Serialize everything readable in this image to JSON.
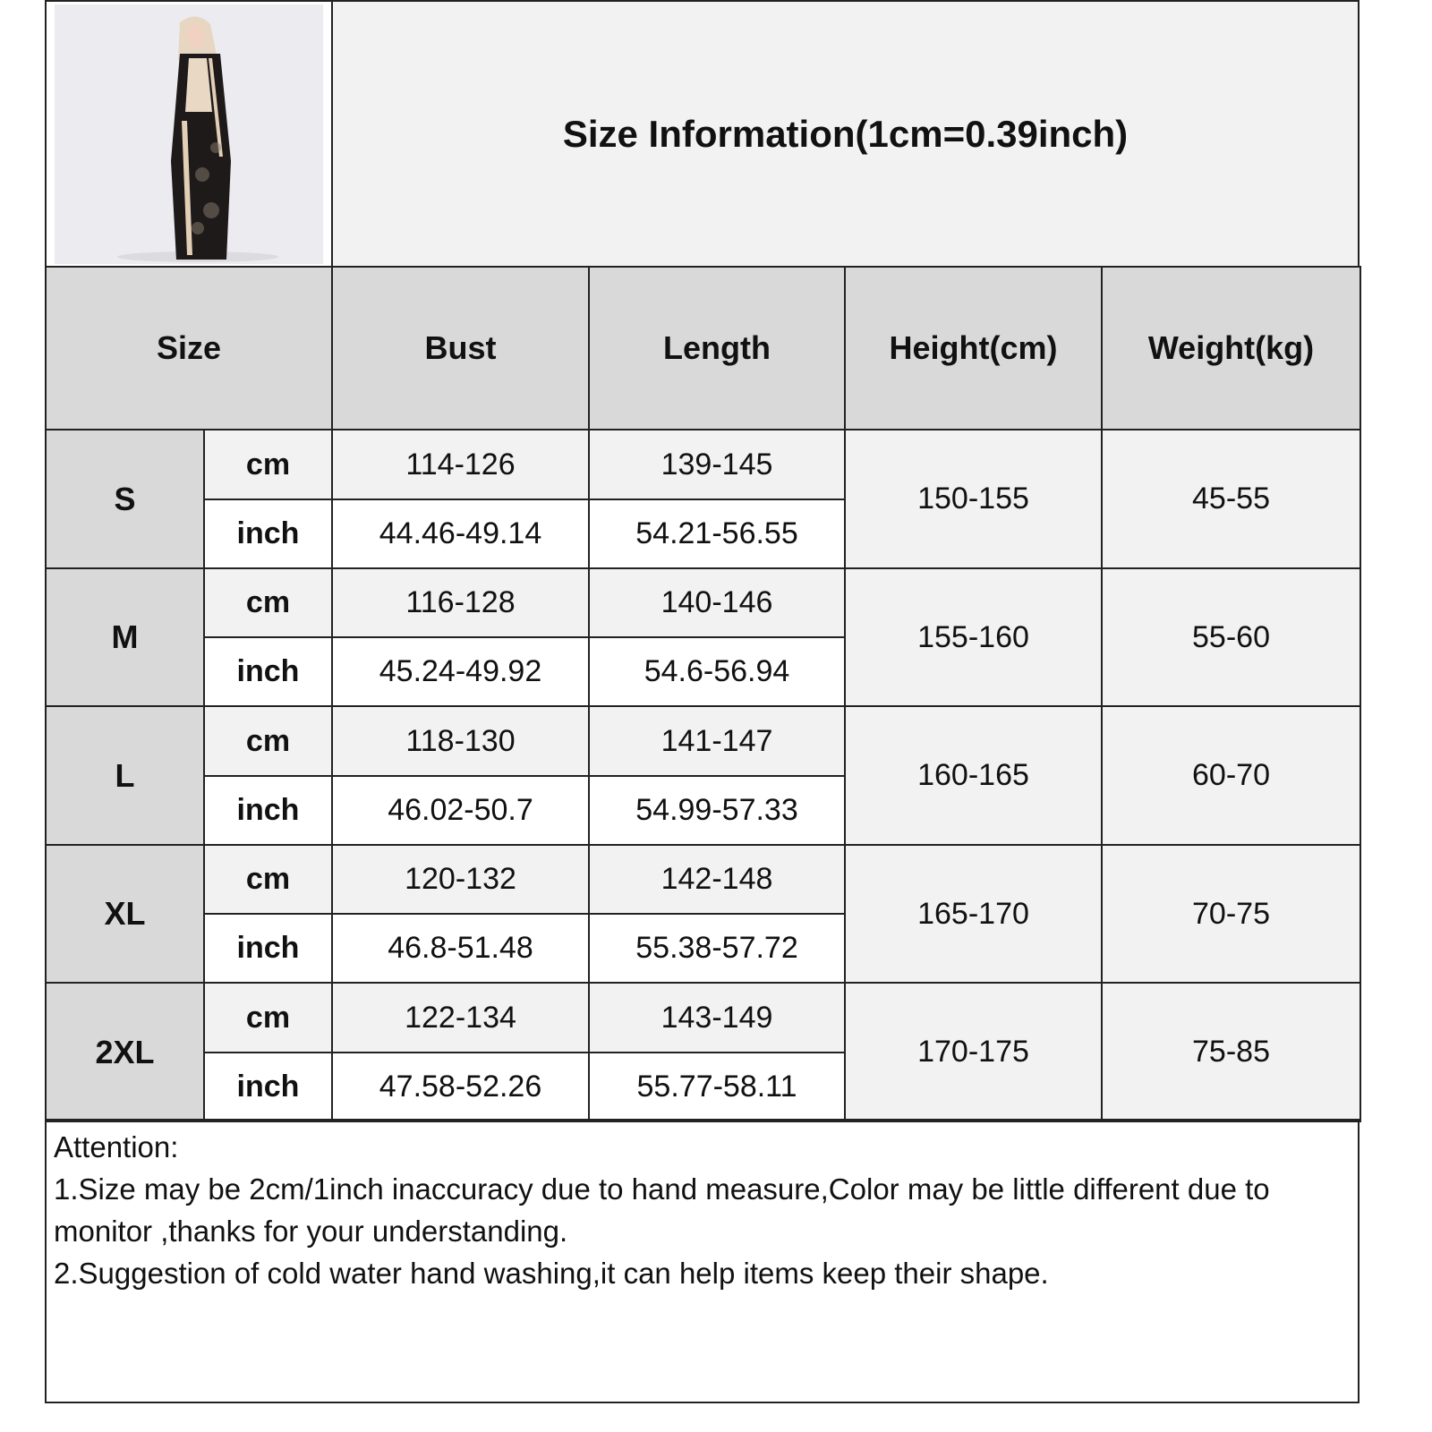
{
  "title": "Size Information(1cm=0.39inch)",
  "headers": [
    "Size",
    "Bust",
    "Length",
    "Height(cm)",
    "Weight(kg)"
  ],
  "units": [
    "cm",
    "inch"
  ],
  "rows": [
    {
      "size": "S",
      "bust_cm": "114-126",
      "bust_inch": "44.46-49.14",
      "length_cm": "139-145",
      "length_inch": "54.21-56.55",
      "height": "150-155",
      "weight": "45-55"
    },
    {
      "size": "M",
      "bust_cm": "116-128",
      "bust_inch": "45.24-49.92",
      "length_cm": "140-146",
      "length_inch": "54.6-56.94",
      "height": "155-160",
      "weight": "55-60"
    },
    {
      "size": "L",
      "bust_cm": "118-130",
      "bust_inch": "46.02-50.7",
      "length_cm": "141-147",
      "length_inch": "54.99-57.33",
      "height": "160-165",
      "weight": "60-70"
    },
    {
      "size": "XL",
      "bust_cm": "120-132",
      "bust_inch": "46.8-51.48",
      "length_cm": "142-148",
      "length_inch": "55.38-57.72",
      "height": "165-170",
      "weight": "70-75"
    },
    {
      "size": "2XL",
      "bust_cm": "122-134",
      "bust_inch": "47.58-52.26",
      "length_cm": "143-149",
      "length_inch": "55.77-58.11",
      "height": "170-175",
      "weight": "75-85"
    }
  ],
  "attention": {
    "heading": "Attention:",
    "lines": [
      "1.Size may be 2cm/1inch inaccuracy due to hand measure,Color may be little different due to monitor ,thanks for your understanding.",
      "2.Suggestion of cold water hand washing,it can help items keep their shape."
    ]
  },
  "colors": {
    "header_bg": "#d9d9d9",
    "light_bg": "#f2f2f2",
    "border": "#222222"
  }
}
